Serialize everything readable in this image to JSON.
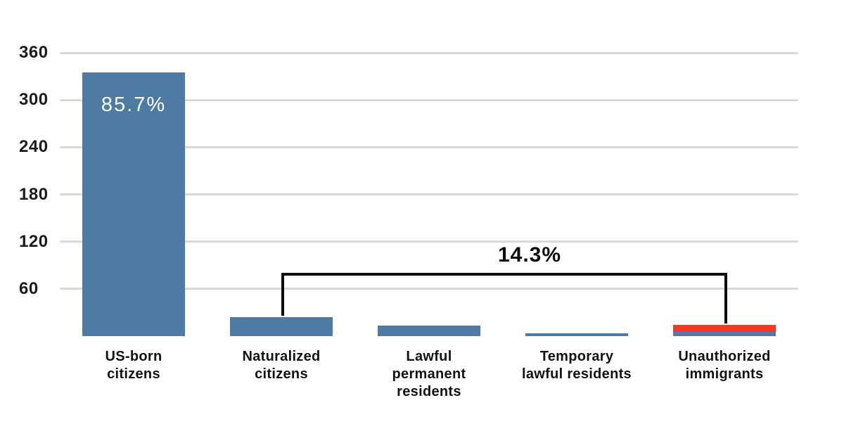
{
  "chart_data": {
    "type": "bar",
    "title": "",
    "xlabel": "",
    "ylabel": "",
    "categories": [
      "US-born citizens",
      "Naturalized citizens",
      "Lawful permanent residents",
      "Temporary lawful residents",
      "Unauthorized immigrants"
    ],
    "category_lines": [
      [
        "US-born",
        "citizens"
      ],
      [
        "Naturalized",
        "citizens"
      ],
      [
        "Lawful",
        "permanent",
        "residents"
      ],
      [
        "Temporary",
        "lawful residents"
      ],
      [
        "Unauthorized",
        "immigrants"
      ]
    ],
    "values": [
      335,
      24,
      13,
      4,
      14
    ],
    "ylim": [
      0,
      360
    ],
    "yticks": [
      60,
      120,
      180,
      240,
      300,
      360
    ],
    "grid": true,
    "legend": "none",
    "bar_color": "#4e7ba3",
    "gridline_color": "#d9d9d9",
    "text_color": "#121212",
    "highlight": {
      "bar_index": 4,
      "color": "#ee3a2a",
      "segment_value": 8
    },
    "annotations": {
      "inside_bar": {
        "bar_index": 0,
        "text": "85.7%",
        "color": "#ffffff"
      },
      "bracket": {
        "from_index": 1,
        "to_index": 4,
        "text": "14.3%",
        "color": "#0c0c0c"
      }
    }
  }
}
